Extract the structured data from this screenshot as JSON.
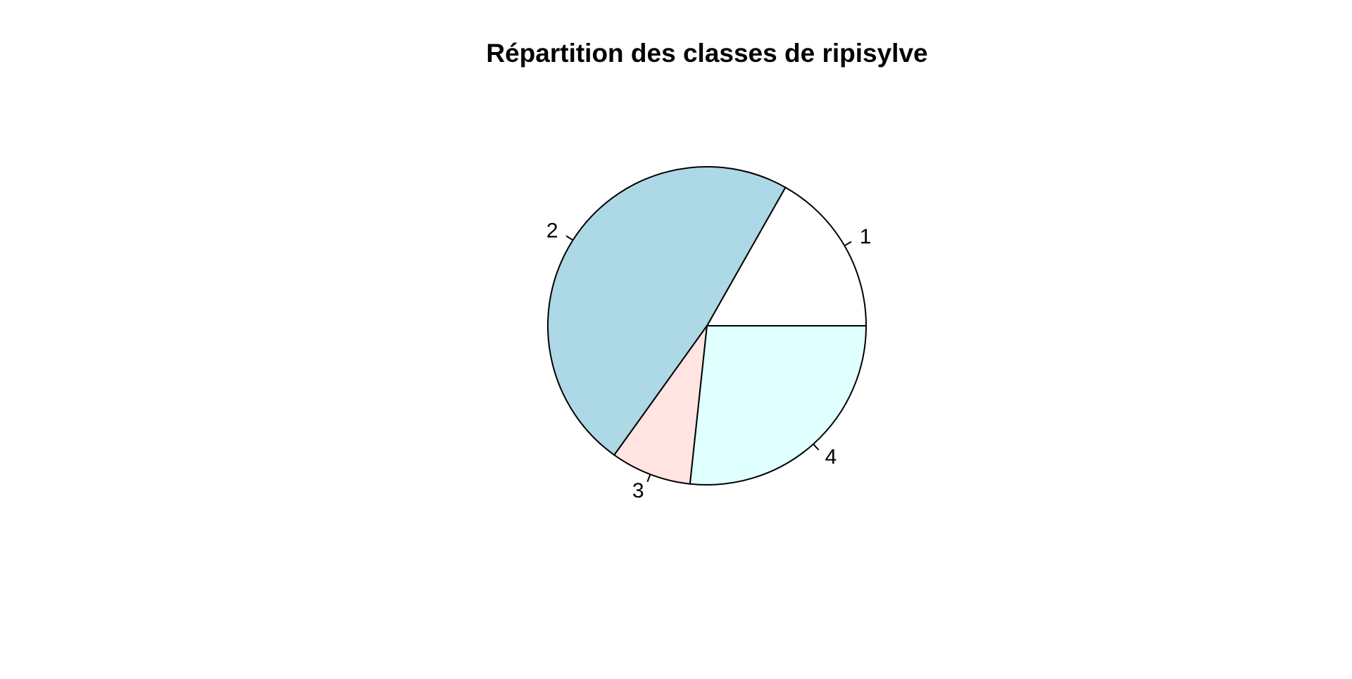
{
  "chart_data": {
    "type": "pie",
    "title": "Répartition des classes de ripisylve",
    "categories": [
      "1",
      "2",
      "3",
      "4"
    ],
    "values": [
      0.168,
      0.483,
      0.082,
      0.267
    ],
    "start_angle_deg": 0,
    "direction": "counterclockwise",
    "colors": [
      "#FFFFFF",
      "#ADD8E6",
      "#FFE4E1",
      "#E0FFFF"
    ],
    "border_color": "#000000"
  }
}
